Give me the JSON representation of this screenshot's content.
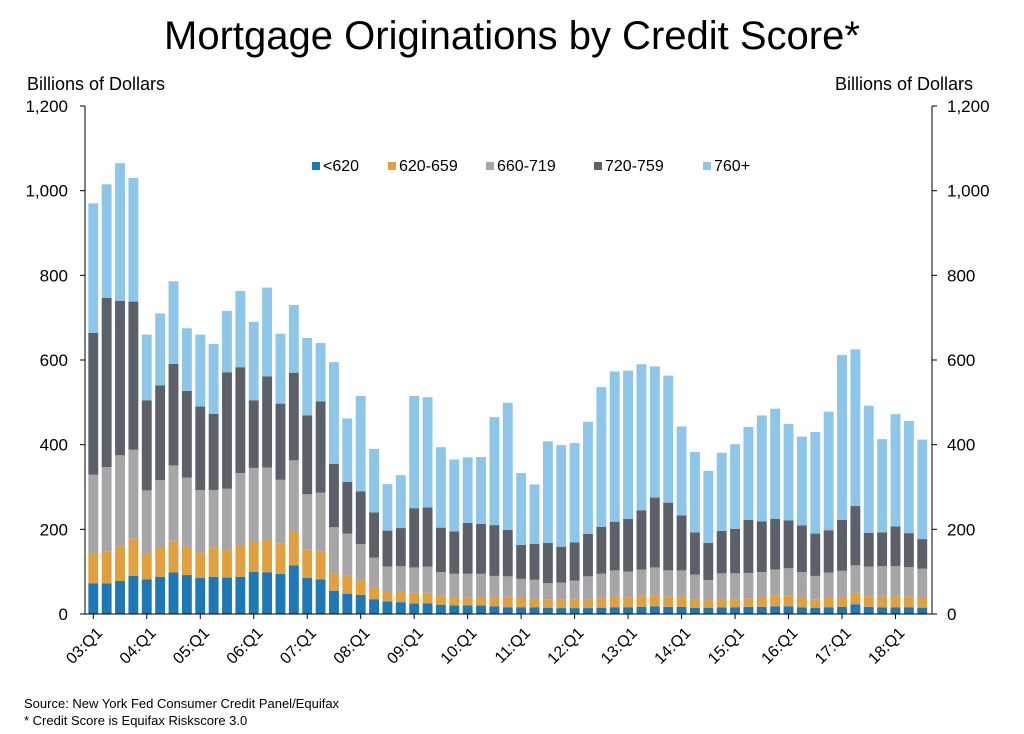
{
  "chart_data": {
    "type": "bar",
    "stacked": true,
    "title": "Mortgage Originations by Credit Score*",
    "ylabel_left": "Billions of Dollars",
    "ylabel_right": "Billions of Dollars",
    "ylim": [
      0,
      1200
    ],
    "yticks": [
      "0",
      "200",
      "400",
      "600",
      "800",
      "1,000",
      "1,200"
    ],
    "ytick_values": [
      0,
      200,
      400,
      600,
      800,
      1000,
      1200
    ],
    "xtick_labels": [
      "03:Q1",
      "04:Q1",
      "05:Q1",
      "06:Q1",
      "07:Q1",
      "08:Q1",
      "09:Q1",
      "10:Q1",
      "11:Q1",
      "12:Q1",
      "13:Q1",
      "14:Q1",
      "15:Q1",
      "16:Q1",
      "17:Q1",
      "18:Q1"
    ],
    "legend_position": "top-center",
    "grid": false,
    "categories": [
      "03:Q1",
      "03:Q2",
      "03:Q3",
      "03:Q4",
      "04:Q1",
      "04:Q2",
      "04:Q3",
      "04:Q4",
      "05:Q1",
      "05:Q2",
      "05:Q3",
      "05:Q4",
      "06:Q1",
      "06:Q2",
      "06:Q3",
      "06:Q4",
      "07:Q1",
      "07:Q2",
      "07:Q3",
      "07:Q4",
      "08:Q1",
      "08:Q2",
      "08:Q3",
      "08:Q4",
      "09:Q1",
      "09:Q2",
      "09:Q3",
      "09:Q4",
      "10:Q1",
      "10:Q2",
      "10:Q3",
      "10:Q4",
      "11:Q1",
      "11:Q2",
      "11:Q3",
      "11:Q4",
      "12:Q1",
      "12:Q2",
      "12:Q3",
      "12:Q4",
      "13:Q1",
      "13:Q2",
      "13:Q3",
      "13:Q4",
      "14:Q1",
      "14:Q2",
      "14:Q3",
      "14:Q4",
      "15:Q1",
      "15:Q2",
      "15:Q3",
      "15:Q4",
      "16:Q1",
      "16:Q2",
      "16:Q3",
      "16:Q4",
      "17:Q1",
      "17:Q2",
      "17:Q3",
      "17:Q4",
      "18:Q1",
      "18:Q2",
      "18:Q3"
    ],
    "series": [
      {
        "name": "<620",
        "color": "#1f77b4",
        "values": [
          72,
          72,
          78,
          90,
          82,
          88,
          98,
          92,
          85,
          88,
          86,
          88,
          100,
          98,
          95,
          115,
          85,
          82,
          55,
          48,
          45,
          35,
          30,
          28,
          25,
          25,
          22,
          20,
          20,
          20,
          18,
          16,
          16,
          16,
          15,
          14,
          14,
          14,
          15,
          16,
          16,
          17,
          18,
          17,
          17,
          15,
          15,
          16,
          16,
          17,
          17,
          18,
          18,
          16,
          15,
          16,
          17,
          23,
          17,
          16,
          16,
          16,
          15
        ]
      },
      {
        "name": "620-659",
        "color": "#e0a040",
        "values": [
          70,
          75,
          82,
          88,
          60,
          68,
          75,
          65,
          60,
          70,
          65,
          75,
          70,
          78,
          72,
          80,
          68,
          65,
          40,
          42,
          35,
          28,
          22,
          25,
          25,
          25,
          22,
          20,
          20,
          20,
          22,
          25,
          22,
          20,
          20,
          20,
          20,
          20,
          22,
          25,
          24,
          26,
          26,
          24,
          24,
          20,
          17,
          20,
          20,
          20,
          22,
          25,
          25,
          23,
          20,
          22,
          23,
          27,
          25,
          25,
          25,
          25,
          24
        ]
      },
      {
        "name": "660-719",
        "color": "#a6a6a8",
        "values": [
          187,
          200,
          215,
          210,
          150,
          160,
          178,
          165,
          148,
          135,
          145,
          170,
          175,
          170,
          150,
          168,
          130,
          140,
          110,
          100,
          85,
          70,
          60,
          60,
          60,
          62,
          55,
          55,
          55,
          55,
          50,
          48,
          45,
          45,
          38,
          40,
          45,
          55,
          58,
          62,
          60,
          62,
          66,
          62,
          62,
          58,
          48,
          60,
          60,
          60,
          60,
          62,
          65,
          60,
          55,
          60,
          62,
          65,
          70,
          72,
          72,
          70,
          68
        ]
      },
      {
        "name": "720-759",
        "color": "#5c6068",
        "values": [
          335,
          400,
          365,
          350,
          213,
          224,
          240,
          205,
          197,
          180,
          275,
          250,
          160,
          215,
          180,
          207,
          186,
          215,
          150,
          122,
          125,
          107,
          85,
          90,
          140,
          140,
          105,
          100,
          120,
          118,
          120,
          110,
          80,
          85,
          95,
          85,
          90,
          100,
          111,
          115,
          125,
          140,
          165,
          160,
          130,
          100,
          88,
          100,
          105,
          125,
          120,
          120,
          113,
          110,
          100,
          100,
          120,
          140,
          80,
          80,
          94,
          80,
          70
        ]
      },
      {
        "name": "760+",
        "color": "#8ec6ea",
        "values": [
          306,
          268,
          325,
          292,
          155,
          170,
          195,
          148,
          170,
          165,
          145,
          180,
          185,
          210,
          165,
          160,
          183,
          138,
          240,
          150,
          225,
          150,
          110,
          125,
          265,
          260,
          190,
          170,
          155,
          158,
          255,
          300,
          170,
          140,
          240,
          240,
          235,
          265,
          330,
          355,
          350,
          345,
          310,
          300,
          210,
          190,
          170,
          185,
          200,
          220,
          250,
          260,
          228,
          210,
          240,
          280,
          390,
          370,
          300,
          220,
          265,
          265,
          235
        ]
      }
    ]
  },
  "footnotes": {
    "source": "Source: New York Fed Consumer Credit Panel/Equifax",
    "note": "* Credit Score is Equifax Riskscore 3.0"
  }
}
